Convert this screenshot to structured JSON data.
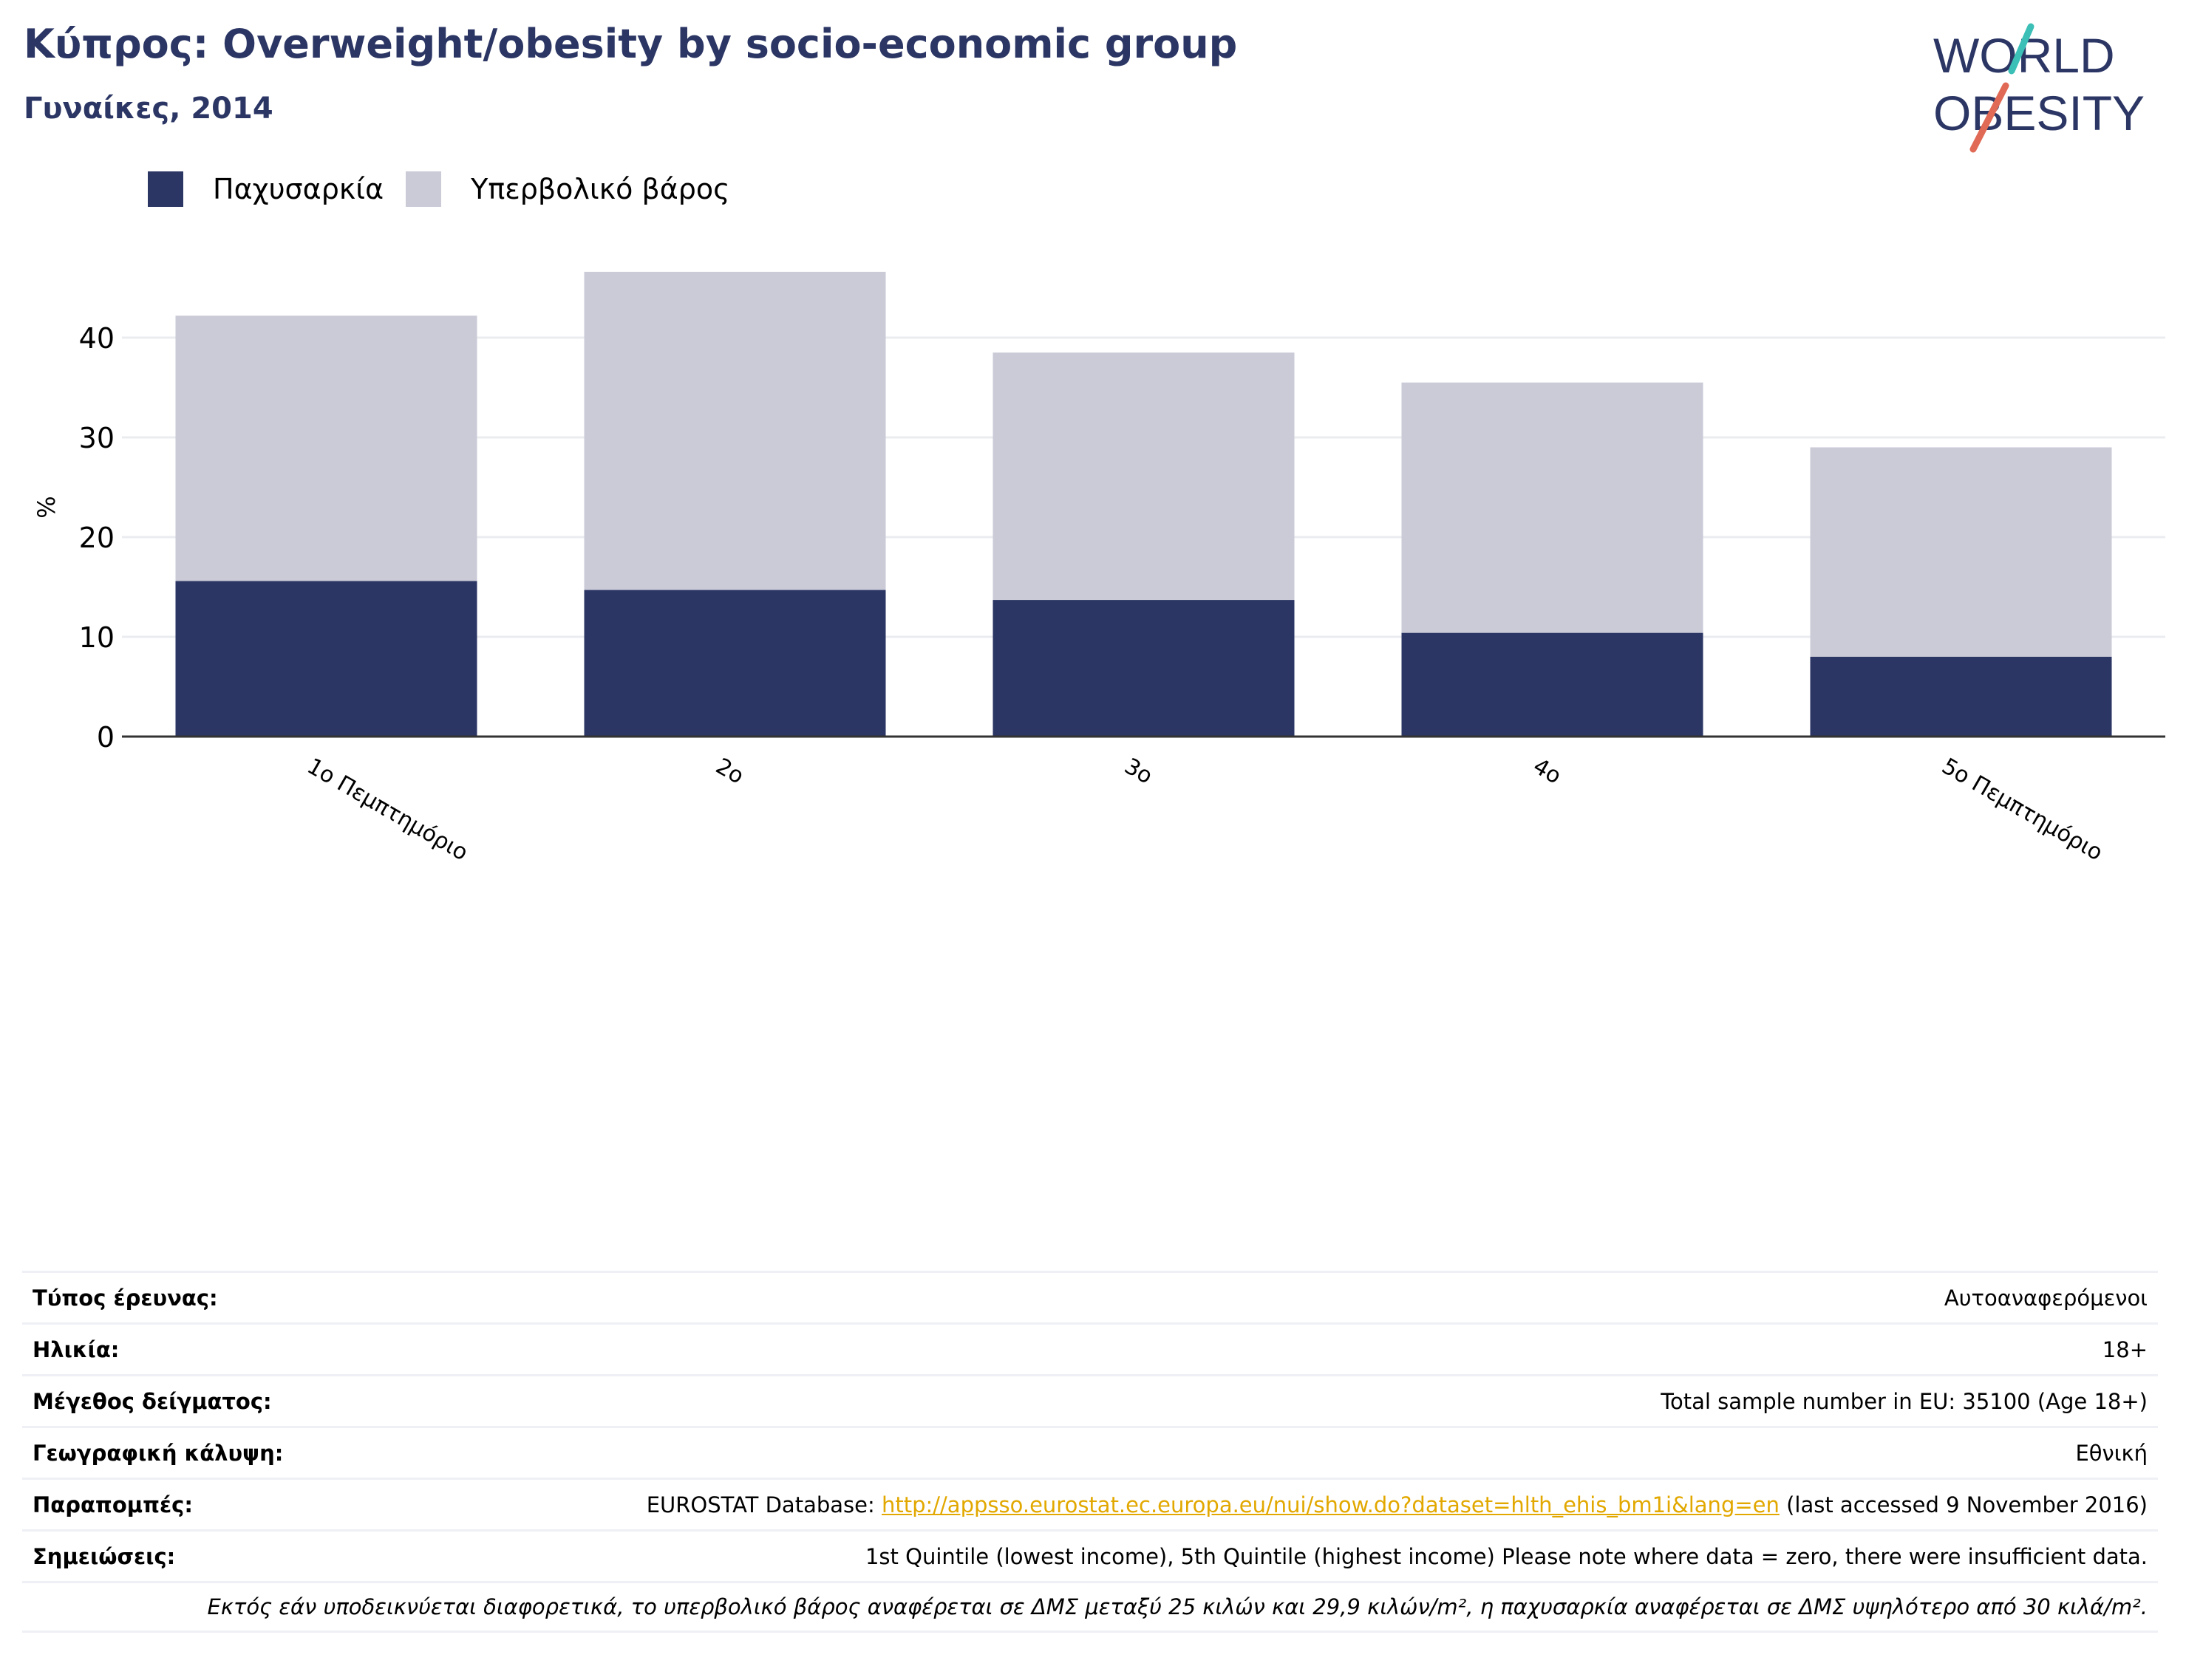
{
  "header": {
    "title": "Κύπρος: Overweight/obesity by socio-economic group",
    "subtitle": "Γυναίκες, 2014"
  },
  "logo": {
    "line1": "WORLD",
    "line2": "OBESITY"
  },
  "colors": {
    "obesity": "#2b3664",
    "overweight": "#cacbd7",
    "title": "#2b3664",
    "link": "#e2a800",
    "logo_teal": "#3bbfb6",
    "logo_red": "#e06a55"
  },
  "chart_data": {
    "type": "bar",
    "stacked": true,
    "categories": [
      "1ο Πεμπτημόριο",
      "2ο",
      "3ο",
      "4ο",
      "5ο Πεμπτημόριο"
    ],
    "series": [
      {
        "name": "Παχυσαρκία",
        "values": [
          15.6,
          14.7,
          13.7,
          10.4,
          8.0
        ]
      },
      {
        "name": "Υπερβολικό βάρος",
        "values": [
          26.6,
          31.9,
          24.8,
          25.1,
          21.0
        ]
      }
    ],
    "ylabel": "%",
    "ylim": [
      0,
      50
    ],
    "yticks": [
      0,
      10,
      20,
      30,
      40
    ],
    "grid": true,
    "legend": "top-left"
  },
  "meta": {
    "survey_type": {
      "label": "Τύπος έρευνας:",
      "value": "Αυτοαναφερόμενοι"
    },
    "age": {
      "label": "Ηλικία:",
      "value": "18+"
    },
    "sample_size": {
      "label": "Μέγεθος δείγματος:",
      "value": "Total sample number in EU: 35100 (Age 18+)"
    },
    "coverage": {
      "label": "Γεωγραφική κάλυψη:",
      "value": "Εθνική"
    },
    "references": {
      "label": "Παραπομπές:",
      "prefix": "EUROSTAT Database: ",
      "link": "http://appsso.eurostat.ec.europa.eu/nui/show.do?dataset=hlth_ehis_bm1i&lang=en",
      "suffix": " (last accessed 9 November 2016)"
    },
    "notes": {
      "label": "Σημειώσεις:",
      "value": "1st Quintile (lowest income), 5th Quintile (highest income) Please note where data = zero, there were insufficient data."
    },
    "definition": "Εκτός εάν υποδεικνύεται διαφορετικά, το υπερβολικό βάρος αναφέρεται σε ΔΜΣ μεταξύ 25 κιλών και 29,9 κιλών/m², η παχυσαρκία αναφέρεται σε ΔΜΣ υψηλότερο από 30 κιλά/m²."
  }
}
